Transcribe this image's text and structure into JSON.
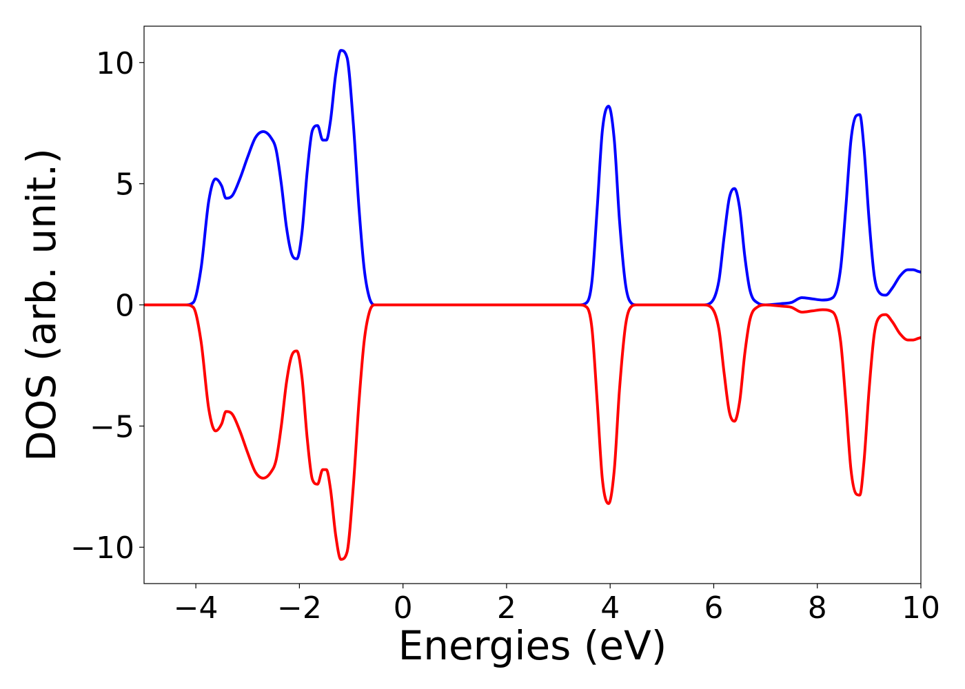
{
  "chart_data": {
    "type": "line",
    "title": "",
    "xlabel": "Energies (eV)",
    "ylabel": "DOS (arb. unit.)",
    "xlim": [
      -5,
      10
    ],
    "ylim": [
      -11.5,
      11.5
    ],
    "x_ticks": [
      -4,
      -2,
      0,
      2,
      4,
      6,
      8,
      10
    ],
    "x_tick_labels": [
      "−4",
      "−2",
      "0",
      "2",
      "4",
      "6",
      "8",
      "10"
    ],
    "y_ticks": [
      -10,
      -5,
      0,
      5,
      10
    ],
    "y_tick_labels": [
      "−10",
      "−5",
      "0",
      "5",
      "10"
    ],
    "grid": false,
    "legend": "none",
    "series": [
      {
        "color": "#0000ff",
        "x": [
          -5.0,
          -4.2,
          -4.05,
          -3.9,
          -3.75,
          -3.62,
          -3.5,
          -3.42,
          -3.3,
          -3.15,
          -3.0,
          -2.85,
          -2.7,
          -2.55,
          -2.45,
          -2.35,
          -2.25,
          -2.15,
          -2.05,
          -1.95,
          -1.85,
          -1.75,
          -1.65,
          -1.55,
          -1.48,
          -1.4,
          -1.3,
          -1.2,
          -1.08,
          -0.96,
          -0.85,
          -0.75,
          -0.65,
          -0.55,
          -0.45,
          3.4,
          3.55,
          3.65,
          3.75,
          3.85,
          3.97,
          4.08,
          4.18,
          4.3,
          4.42,
          4.5,
          5.8,
          5.95,
          6.1,
          6.2,
          6.3,
          6.4,
          6.5,
          6.6,
          6.7,
          6.85,
          7.0,
          7.3,
          7.5,
          7.7,
          7.9,
          8.1,
          8.3,
          8.45,
          8.55,
          8.65,
          8.75,
          8.82,
          8.9,
          9.0,
          9.1,
          9.2,
          9.32,
          9.45,
          9.6,
          9.75,
          9.85,
          9.95,
          10.0
        ],
        "y": [
          0.0,
          0.0,
          0.1,
          1.5,
          4.3,
          5.2,
          4.9,
          4.4,
          4.5,
          5.2,
          6.1,
          6.9,
          7.15,
          6.9,
          6.4,
          5.0,
          3.2,
          2.1,
          1.9,
          3.0,
          5.5,
          7.2,
          7.4,
          6.8,
          6.8,
          7.6,
          9.5,
          10.5,
          10.2,
          7.5,
          4.0,
          1.5,
          0.3,
          0.0,
          0.0,
          0.0,
          0.1,
          1.0,
          4.0,
          7.2,
          8.2,
          6.8,
          3.5,
          0.8,
          0.05,
          0.0,
          0.0,
          0.1,
          1.0,
          2.8,
          4.4,
          4.8,
          4.0,
          2.0,
          0.6,
          0.08,
          0.0,
          0.05,
          0.1,
          0.3,
          0.25,
          0.2,
          0.3,
          1.5,
          4.0,
          6.8,
          7.8,
          7.85,
          6.5,
          3.5,
          1.2,
          0.5,
          0.4,
          0.7,
          1.2,
          1.45,
          1.45,
          1.38,
          1.35
        ]
      },
      {
        "color": "#ff0000",
        "x": [
          -5.0,
          -4.2,
          -4.05,
          -3.9,
          -3.75,
          -3.62,
          -3.5,
          -3.42,
          -3.3,
          -3.15,
          -3.0,
          -2.85,
          -2.7,
          -2.55,
          -2.45,
          -2.35,
          -2.25,
          -2.15,
          -2.05,
          -1.95,
          -1.85,
          -1.75,
          -1.65,
          -1.55,
          -1.48,
          -1.4,
          -1.3,
          -1.2,
          -1.08,
          -0.96,
          -0.85,
          -0.75,
          -0.65,
          -0.55,
          -0.45,
          3.4,
          3.55,
          3.65,
          3.75,
          3.85,
          3.97,
          4.08,
          4.18,
          4.3,
          4.42,
          4.5,
          5.8,
          5.95,
          6.1,
          6.2,
          6.3,
          6.4,
          6.5,
          6.6,
          6.7,
          6.85,
          7.0,
          7.3,
          7.5,
          7.7,
          7.9,
          8.1,
          8.3,
          8.45,
          8.55,
          8.65,
          8.75,
          8.82,
          8.9,
          9.0,
          9.1,
          9.2,
          9.32,
          9.45,
          9.6,
          9.75,
          9.85,
          9.95,
          10.0
        ],
        "y": [
          0.0,
          0.0,
          -0.1,
          -1.5,
          -4.3,
          -5.2,
          -4.9,
          -4.4,
          -4.5,
          -5.2,
          -6.1,
          -6.9,
          -7.15,
          -6.9,
          -6.4,
          -5.0,
          -3.2,
          -2.1,
          -1.9,
          -3.0,
          -5.5,
          -7.2,
          -7.4,
          -6.8,
          -6.8,
          -7.6,
          -9.5,
          -10.5,
          -10.2,
          -7.5,
          -4.0,
          -1.5,
          -0.3,
          0.0,
          0.0,
          0.0,
          -0.1,
          -1.0,
          -4.0,
          -7.2,
          -8.2,
          -6.8,
          -3.5,
          -0.8,
          -0.05,
          0.0,
          0.0,
          -0.1,
          -1.0,
          -2.8,
          -4.4,
          -4.8,
          -4.0,
          -2.0,
          -0.6,
          -0.08,
          0.0,
          -0.05,
          -0.1,
          -0.3,
          -0.25,
          -0.2,
          -0.3,
          -1.5,
          -4.0,
          -6.8,
          -7.8,
          -7.85,
          -6.5,
          -3.5,
          -1.2,
          -0.5,
          -0.4,
          -0.7,
          -1.2,
          -1.45,
          -1.45,
          -1.38,
          -1.35
        ]
      }
    ]
  }
}
